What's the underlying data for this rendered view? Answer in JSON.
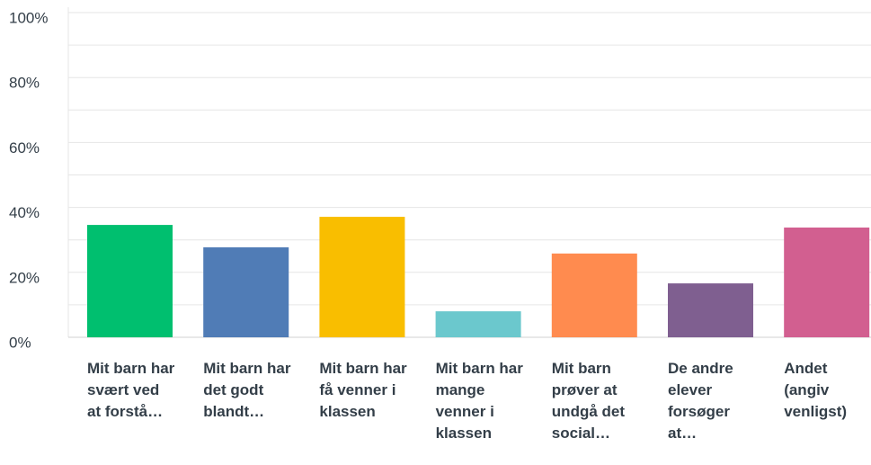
{
  "chart_data": {
    "type": "bar",
    "categories": [
      "Mit barn har svært ved at forstå…",
      "Mit barn har det godt blandt…",
      "Mit barn har få venner i klassen",
      "Mit barn har mange venner i klassen",
      "Mit barn prøver at undgå det social…",
      "De andre elever forsøger at…",
      "Andet (angiv venligst)"
    ],
    "values": [
      34.6,
      27.7,
      37.1,
      8.0,
      25.8,
      16.6,
      33.8
    ],
    "colors": [
      "#00bf6f",
      "#507cb6",
      "#f9be00",
      "#6bc8cd",
      "#ff8b4f",
      "#7f5f90",
      "#d25f90"
    ],
    "ylim": [
      0,
      100
    ],
    "yticks": [
      {
        "value": 0,
        "label": "0%"
      },
      {
        "value": 20,
        "label": "20%"
      },
      {
        "value": 40,
        "label": "40%"
      },
      {
        "value": 60,
        "label": "60%"
      },
      {
        "value": 80,
        "label": "80%"
      },
      {
        "value": 100,
        "label": "100%"
      }
    ],
    "yticks_minor": [
      10,
      30,
      50,
      70,
      90
    ],
    "grid": true
  }
}
